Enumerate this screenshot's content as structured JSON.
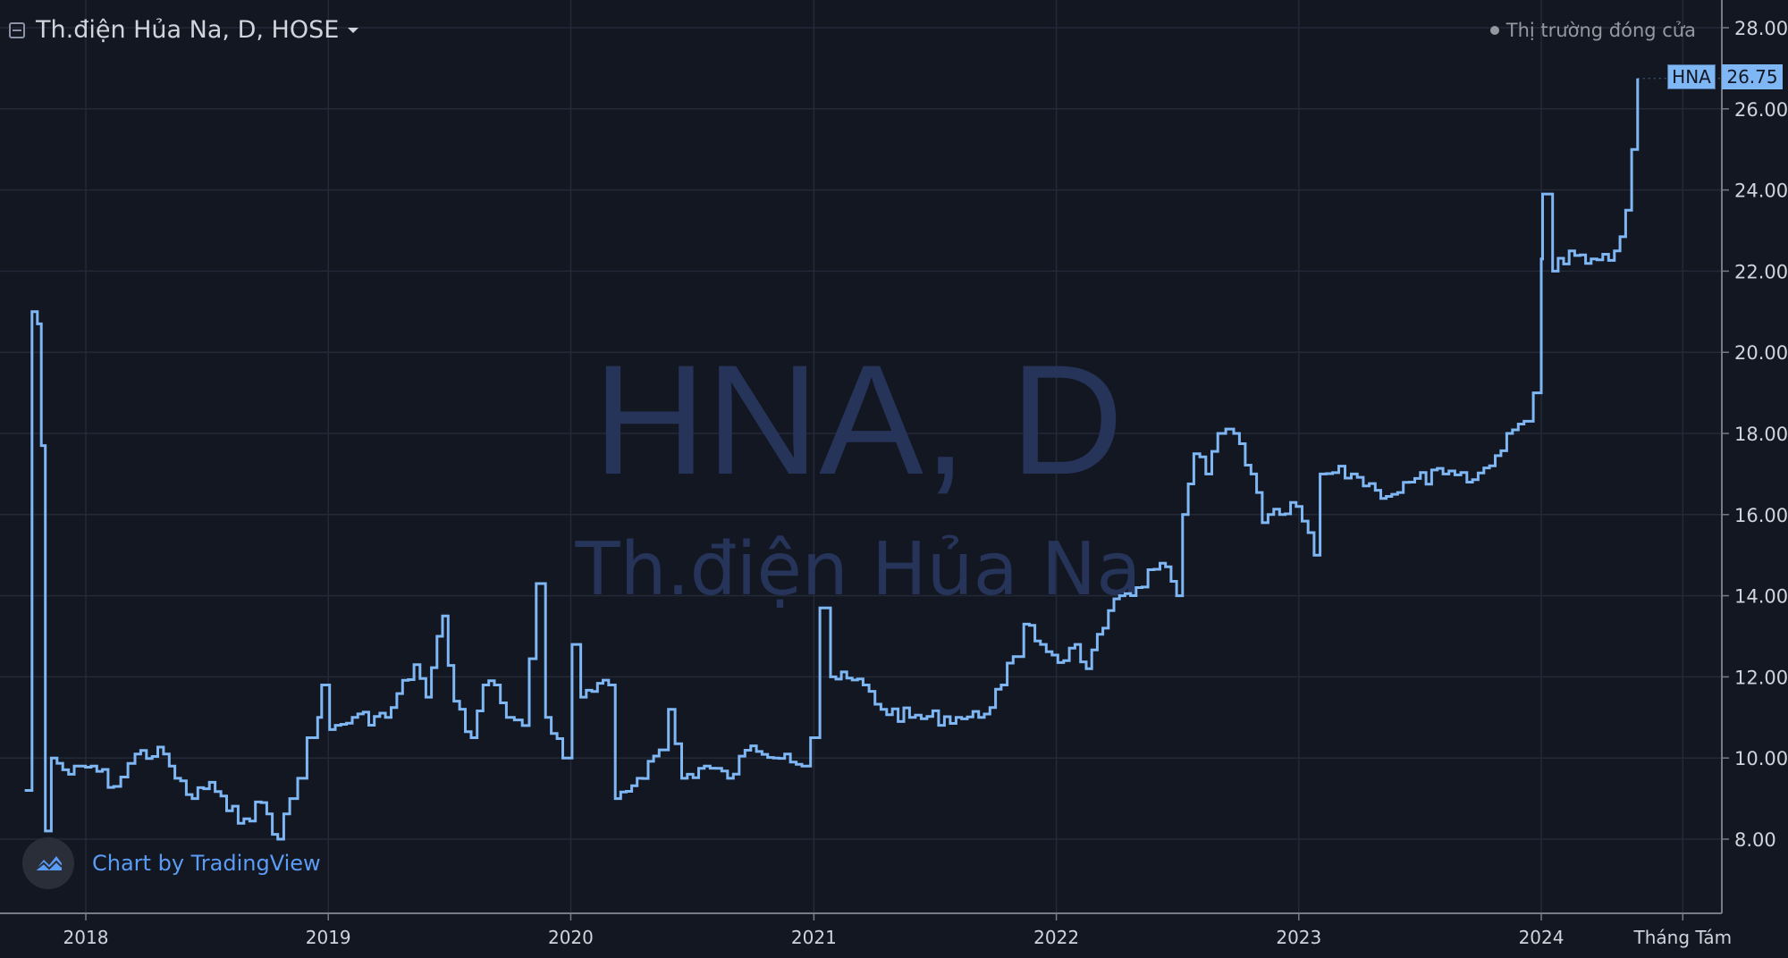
{
  "header": {
    "title": "Th.điện Hủa Na, D, HOSE",
    "market_status": "Thị trường đóng cửa"
  },
  "watermark": {
    "line1": "HNA, D",
    "line2": "Th.điện Hủa Na"
  },
  "branding": {
    "text": "Chart by TradingView"
  },
  "colors": {
    "background": "#131722",
    "line": "#7fb7f5",
    "grid": "#242938",
    "watermark": "#26345a"
  },
  "chart_data": {
    "type": "line",
    "symbol": "HNA",
    "last_price": "26.75",
    "ylim": [
      6.3,
      28.6
    ],
    "y_ticks": [
      "8.00",
      "10.00",
      "12.00",
      "14.00",
      "16.00",
      "18.00",
      "20.00",
      "22.00",
      "24.00",
      "26.00",
      "28.00"
    ],
    "x_ticks": [
      {
        "date": "2018-01-01",
        "label": "2018"
      },
      {
        "date": "2019-01-01",
        "label": "2019"
      },
      {
        "date": "2020-01-01",
        "label": "2020"
      },
      {
        "date": "2021-01-01",
        "label": "2021"
      },
      {
        "date": "2022-01-01",
        "label": "2022"
      },
      {
        "date": "2023-01-01",
        "label": "2023"
      },
      {
        "date": "2024-01-01",
        "label": "2024"
      },
      {
        "date": "2024-08-01",
        "label": "Tháng Tám"
      }
    ],
    "grid": true,
    "series": [
      {
        "values": [
          [
            "2017-10-01",
            9.2
          ],
          [
            "2017-10-08",
            9.2
          ],
          [
            "2017-10-12",
            21.0
          ],
          [
            "2017-10-20",
            20.7
          ],
          [
            "2017-10-26",
            17.7
          ],
          [
            "2017-11-01",
            8.2
          ],
          [
            "2017-11-10",
            10.0
          ],
          [
            "2017-12-06",
            9.6
          ],
          [
            "2018-01-09",
            9.8
          ],
          [
            "2018-02-12",
            9.3
          ],
          [
            "2018-03-16",
            10.1
          ],
          [
            "2018-04-28",
            10.1
          ],
          [
            "2018-05-15",
            9.5
          ],
          [
            "2018-06-10",
            9.0
          ],
          [
            "2018-07-06",
            9.4
          ],
          [
            "2018-08-01",
            8.7
          ],
          [
            "2018-08-27",
            8.5
          ],
          [
            "2018-09-22",
            8.9
          ],
          [
            "2018-10-17",
            8.0
          ],
          [
            "2018-11-04",
            9.0
          ],
          [
            "2018-11-16",
            9.5
          ],
          [
            "2018-11-30",
            10.5
          ],
          [
            "2018-12-16",
            11.0
          ],
          [
            "2018-12-22",
            11.8
          ],
          [
            "2019-01-03",
            10.7
          ],
          [
            "2019-02-06",
            11.0
          ],
          [
            "2019-03-28",
            11.0
          ],
          [
            "2019-05-10",
            12.3
          ],
          [
            "2019-05-28",
            11.5
          ],
          [
            "2019-06-22",
            13.5
          ],
          [
            "2019-07-09",
            11.4
          ],
          [
            "2019-08-04",
            10.5
          ],
          [
            "2019-08-22",
            11.8
          ],
          [
            "2019-09-08",
            11.8
          ],
          [
            "2019-09-26",
            11.0
          ],
          [
            "2019-10-20",
            10.8
          ],
          [
            "2019-11-10",
            14.3
          ],
          [
            "2019-11-24",
            11.0
          ],
          [
            "2019-12-20",
            10.0
          ],
          [
            "2020-01-03",
            12.8
          ],
          [
            "2020-01-16",
            11.5
          ],
          [
            "2020-02-27",
            11.8
          ],
          [
            "2020-03-08",
            9.0
          ],
          [
            "2020-04-10",
            9.5
          ],
          [
            "2020-05-13",
            10.2
          ],
          [
            "2020-05-27",
            11.2
          ],
          [
            "2020-06-16",
            9.5
          ],
          [
            "2020-07-20",
            9.8
          ],
          [
            "2020-08-24",
            9.5
          ],
          [
            "2020-09-28",
            10.3
          ],
          [
            "2020-11-18",
            10.1
          ],
          [
            "2020-12-14",
            9.8
          ],
          [
            "2020-12-27",
            10.5
          ],
          [
            "2021-01-10",
            13.7
          ],
          [
            "2021-01-26",
            12.0
          ],
          [
            "2021-03-16",
            11.8
          ],
          [
            "2021-04-12",
            11.2
          ],
          [
            "2021-05-25",
            11.0
          ],
          [
            "2021-08-03",
            11.0
          ],
          [
            "2021-09-06",
            11.0
          ],
          [
            "2021-10-10",
            11.8
          ],
          [
            "2021-10-28",
            12.5
          ],
          [
            "2021-11-13",
            13.3
          ],
          [
            "2021-12-08",
            12.8
          ],
          [
            "2022-01-12",
            12.4
          ],
          [
            "2022-01-29",
            12.8
          ],
          [
            "2022-02-15",
            12.2
          ],
          [
            "2022-03-12",
            13.2
          ],
          [
            "2022-04-06",
            14.0
          ],
          [
            "2022-05-01",
            14.2
          ],
          [
            "2022-06-06",
            14.8
          ],
          [
            "2022-07-01",
            14.0
          ],
          [
            "2022-07-10",
            16.0
          ],
          [
            "2022-07-27",
            17.5
          ],
          [
            "2022-08-14",
            17.0
          ],
          [
            "2022-09-01",
            18.0
          ],
          [
            "2022-09-25",
            18.0
          ],
          [
            "2022-10-21",
            17.0
          ],
          [
            "2022-11-07",
            15.8
          ],
          [
            "2022-12-03",
            16.0
          ],
          [
            "2022-12-28",
            16.2
          ],
          [
            "2023-01-24",
            15.0
          ],
          [
            "2023-02-02",
            17.0
          ],
          [
            "2023-03-21",
            17.0
          ],
          [
            "2023-04-26",
            16.6
          ],
          [
            "2023-05-21",
            16.5
          ],
          [
            "2023-06-16",
            16.8
          ],
          [
            "2023-08-06",
            17.0
          ],
          [
            "2023-09-11",
            16.8
          ],
          [
            "2023-10-15",
            17.2
          ],
          [
            "2023-11-10",
            18.0
          ],
          [
            "2023-12-06",
            18.3
          ],
          [
            "2023-12-20",
            19.0
          ],
          [
            "2024-01-01",
            22.3
          ],
          [
            "2024-01-03",
            23.9
          ],
          [
            "2024-01-18",
            22.0
          ],
          [
            "2024-02-12",
            22.5
          ],
          [
            "2024-03-16",
            22.3
          ],
          [
            "2024-04-20",
            22.5
          ],
          [
            "2024-05-07",
            23.5
          ],
          [
            "2024-05-16",
            25.0
          ],
          [
            "2024-05-25",
            26.75
          ]
        ]
      }
    ]
  }
}
